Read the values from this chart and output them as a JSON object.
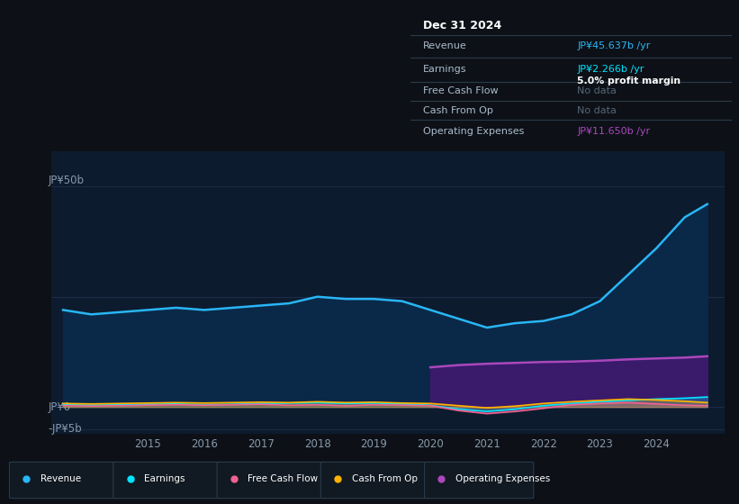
{
  "background_color": "#0d1117",
  "plot_bg_color": "#0d1b2e",
  "grid_color": "#1e3050",
  "ylabel_top": "JP¥50b",
  "ylabel_zero": "JP¥0",
  "ylabel_neg": "-JP¥5b",
  "ylim": [
    -6000000000,
    58000000000
  ],
  "years": [
    2013.5,
    2014.0,
    2014.5,
    2015.0,
    2015.5,
    2016.0,
    2016.5,
    2017.0,
    2017.5,
    2018.0,
    2018.5,
    2019.0,
    2019.5,
    2020.0,
    2020.5,
    2021.0,
    2021.5,
    2022.0,
    2022.5,
    2023.0,
    2023.5,
    2024.0,
    2024.5,
    2024.9
  ],
  "revenue": [
    22000000000,
    21000000000,
    21500000000,
    22000000000,
    22500000000,
    22000000000,
    22500000000,
    23000000000,
    23500000000,
    25000000000,
    24500000000,
    24500000000,
    24000000000,
    22000000000,
    20000000000,
    18000000000,
    19000000000,
    19500000000,
    21000000000,
    24000000000,
    30000000000,
    36000000000,
    43000000000,
    46000000000
  ],
  "earnings": [
    500000000,
    400000000,
    500000000,
    600000000,
    700000000,
    500000000,
    600000000,
    800000000,
    900000000,
    1000000000,
    800000000,
    900000000,
    700000000,
    400000000,
    -500000000,
    -1000000000,
    -500000000,
    300000000,
    800000000,
    1200000000,
    1500000000,
    1800000000,
    2000000000,
    2266000000
  ],
  "free_cash_flow": [
    300000000,
    200000000,
    300000000,
    400000000,
    500000000,
    400000000,
    500000000,
    600000000,
    400000000,
    500000000,
    300000000,
    500000000,
    400000000,
    300000000,
    -800000000,
    -1500000000,
    -1000000000,
    -300000000,
    500000000,
    800000000,
    1000000000,
    700000000,
    400000000,
    300000000
  ],
  "cash_from_op": [
    800000000,
    700000000,
    800000000,
    900000000,
    1000000000,
    900000000,
    1000000000,
    1100000000,
    1000000000,
    1200000000,
    1000000000,
    1100000000,
    900000000,
    800000000,
    300000000,
    -200000000,
    200000000,
    800000000,
    1200000000,
    1500000000,
    1800000000,
    1600000000,
    1300000000,
    1000000000
  ],
  "op_years": [
    2020.0,
    2020.5,
    2021.0,
    2021.5,
    2022.0,
    2022.5,
    2023.0,
    2023.5,
    2024.0,
    2024.5,
    2024.9
  ],
  "op_expenses": [
    9000000000,
    9500000000,
    9800000000,
    10000000000,
    10200000000,
    10300000000,
    10500000000,
    10800000000,
    11000000000,
    11200000000,
    11500000000
  ],
  "revenue_color": "#29b6f6",
  "earnings_color": "#00e5ff",
  "free_cash_flow_color": "#f06292",
  "cash_from_op_color": "#ffb300",
  "op_expenses_color": "#ab47bc",
  "op_expenses_fill_color": "#3d1a6e",
  "revenue_fill_color": "#0a2a4a",
  "legend_labels": [
    "Revenue",
    "Earnings",
    "Free Cash Flow",
    "Cash From Op",
    "Operating Expenses"
  ],
  "legend_colors": [
    "#29b6f6",
    "#00e5ff",
    "#f06292",
    "#ffb300",
    "#ab47bc"
  ],
  "xtick_years": [
    2015,
    2016,
    2017,
    2018,
    2019,
    2020,
    2021,
    2022,
    2023,
    2024
  ],
  "info_box": {
    "date": "Dec 31 2024",
    "revenue_label": "Revenue",
    "revenue_value": "JP¥45.637b /yr",
    "earnings_label": "Earnings",
    "earnings_value": "JP¥2.266b /yr",
    "profit_margin": "5.0% profit margin",
    "fcf_label": "Free Cash Flow",
    "fcf_value": "No data",
    "cfop_label": "Cash From Op",
    "cfop_value": "No data",
    "opex_label": "Operating Expenses",
    "opex_value": "JP¥11.650b /yr"
  }
}
